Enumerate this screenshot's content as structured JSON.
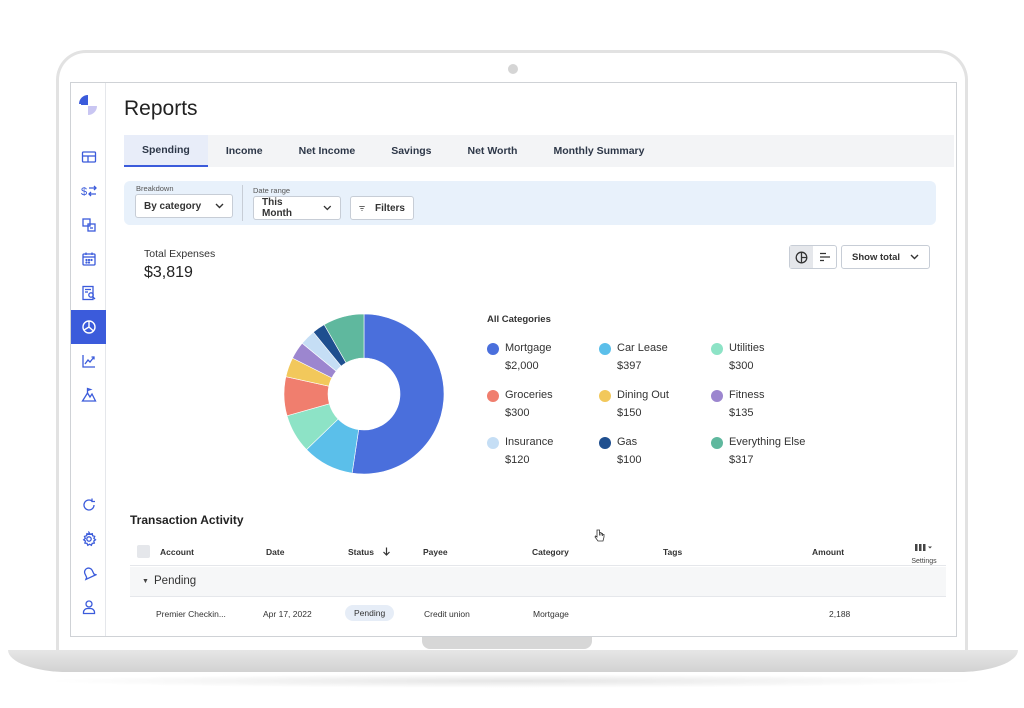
{
  "app": {
    "page_title": "Reports"
  },
  "tabs": [
    {
      "label": "Spending",
      "active": true
    },
    {
      "label": "Income",
      "active": false
    },
    {
      "label": "Net Income",
      "active": false
    },
    {
      "label": "Savings",
      "active": false
    },
    {
      "label": "Net Worth",
      "active": false
    },
    {
      "label": "Monthly Summary",
      "active": false
    }
  ],
  "filters": {
    "breakdown_label": "Breakdown",
    "breakdown_value": "By category",
    "date_range_label": "Date range",
    "date_range_value": "This Month",
    "filters_button": "Filters"
  },
  "summary": {
    "total_label": "Total Expenses",
    "total_value": "$3,819",
    "show_total_label": "Show total"
  },
  "legend": {
    "title": "All Categories",
    "items": [
      {
        "name": "Mortgage",
        "value": "$2,000",
        "color": "#4a6fdc"
      },
      {
        "name": "Car Lease",
        "value": "$397",
        "color": "#5bbfea"
      },
      {
        "name": "Utilities",
        "value": "$300",
        "color": "#8de3c6"
      },
      {
        "name": "Groceries",
        "value": "$300",
        "color": "#f07e6e"
      },
      {
        "name": "Dining Out",
        "value": "$150",
        "color": "#f2c85b"
      },
      {
        "name": "Fitness",
        "value": "$135",
        "color": "#9c86cf"
      },
      {
        "name": "Insurance",
        "value": "$120",
        "color": "#c5def5"
      },
      {
        "name": "Gas",
        "value": "$100",
        "color": "#1f4f8f"
      },
      {
        "name": "Everything Else",
        "value": "$317",
        "color": "#5fb89e"
      }
    ]
  },
  "chart_data": {
    "type": "pie",
    "categories": [
      "Mortgage",
      "Car Lease",
      "Utilities",
      "Groceries",
      "Dining Out",
      "Fitness",
      "Insurance",
      "Gas",
      "Everything Else"
    ],
    "values": [
      2000,
      397,
      300,
      300,
      150,
      135,
      120,
      100,
      317
    ],
    "colors": [
      "#4a6fdc",
      "#5bbfea",
      "#8de3c6",
      "#f07e6e",
      "#f2c85b",
      "#9c86cf",
      "#c5def5",
      "#1f4f8f",
      "#5fb89e"
    ],
    "donut": true
  },
  "transactions": {
    "title": "Transaction Activity",
    "columns": {
      "account": "Account",
      "date": "Date",
      "status": "Status",
      "payee": "Payee",
      "category": "Category",
      "tags": "Tags",
      "amount": "Amount",
      "settings": "Settings"
    },
    "group_label": "Pending",
    "rows": [
      {
        "account": "Premier Checkin...",
        "date": "Apr 17, 2022",
        "status": "Pending",
        "payee": "Credit union",
        "category": "Mortgage",
        "tags": "",
        "amount": "2,188"
      }
    ]
  },
  "icons": {
    "sidebar": [
      "dashboard-icon",
      "transactions-icon",
      "budget-icon",
      "calendar-icon",
      "reports-search-icon",
      "reports-icon",
      "investments-icon",
      "goals-icon",
      "refresh-icon",
      "settings-icon",
      "notifications-icon",
      "profile-icon"
    ]
  },
  "colors": {
    "accent": "#3b5bdb",
    "filter_bg": "#e8f1fb"
  }
}
